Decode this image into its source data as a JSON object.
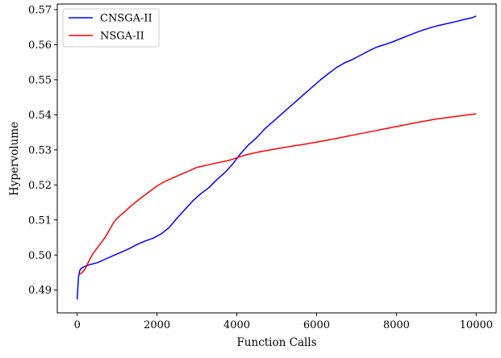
{
  "chart_data": {
    "type": "line",
    "title": "",
    "xlabel": "Function Calls",
    "ylabel": "Hypervolume",
    "xlim": [
      -500,
      10500
    ],
    "ylim": [
      0.4835,
      0.5716
    ],
    "xticks": [
      0,
      2000,
      4000,
      6000,
      8000,
      10000
    ],
    "yticks": [
      0.49,
      0.5,
      0.51,
      0.52,
      0.53,
      0.54,
      0.55,
      0.56,
      0.57
    ],
    "xtick_labels": [
      "0",
      "2000",
      "4000",
      "6000",
      "8000",
      "10000"
    ],
    "ytick_labels": [
      "0.49",
      "0.50",
      "0.51",
      "0.52",
      "0.53",
      "0.54",
      "0.55",
      "0.56",
      "0.57"
    ],
    "grid": false,
    "legend_position": "upper-left",
    "series": [
      {
        "name": "CNSGA-II",
        "color": "#0000ff",
        "x": [
          0,
          30,
          60,
          100,
          200,
          300,
          500,
          700,
          900,
          1100,
          1300,
          1500,
          1700,
          1900,
          2100,
          2300,
          2500,
          2700,
          2900,
          3100,
          3300,
          3500,
          3700,
          3900,
          4100,
          4300,
          4500,
          4700,
          4900,
          5100,
          5300,
          5500,
          5700,
          5900,
          6100,
          6300,
          6500,
          6700,
          6900,
          7100,
          7300,
          7500,
          7700,
          7900,
          8100,
          8300,
          8500,
          8700,
          8900,
          9100,
          9300,
          9500,
          9700,
          9900,
          10000
        ],
        "y": [
          0.4873,
          0.4935,
          0.4955,
          0.4962,
          0.4968,
          0.4972,
          0.4978,
          0.4988,
          0.4998,
          0.5008,
          0.5018,
          0.503,
          0.504,
          0.5048,
          0.506,
          0.5078,
          0.5105,
          0.513,
          0.5155,
          0.5175,
          0.5192,
          0.5215,
          0.5235,
          0.526,
          0.529,
          0.5315,
          0.5335,
          0.536,
          0.538,
          0.54,
          0.542,
          0.544,
          0.546,
          0.548,
          0.55,
          0.5518,
          0.5535,
          0.5548,
          0.5558,
          0.557,
          0.5582,
          0.5593,
          0.56,
          0.5608,
          0.5617,
          0.5626,
          0.5635,
          0.5643,
          0.565,
          0.5656,
          0.5661,
          0.5666,
          0.5672,
          0.5677,
          0.5682
        ]
      },
      {
        "name": "NSGA-II",
        "color": "#ff0000",
        "x": [
          50,
          100,
          200,
          300,
          400,
          500,
          600,
          700,
          800,
          900,
          1000,
          1200,
          1400,
          1600,
          1800,
          2000,
          2200,
          2400,
          2600,
          2800,
          3000,
          3400,
          3800,
          4200,
          4600,
          5000,
          5400,
          5800,
          6200,
          6600,
          7000,
          7400,
          7800,
          8200,
          8600,
          9000,
          9400,
          9800,
          10000
        ],
        "y": [
          0.4945,
          0.4948,
          0.496,
          0.4985,
          0.5005,
          0.502,
          0.5035,
          0.505,
          0.507,
          0.509,
          0.5105,
          0.5125,
          0.5145,
          0.5163,
          0.518,
          0.5197,
          0.521,
          0.522,
          0.523,
          0.524,
          0.525,
          0.526,
          0.527,
          0.5285,
          0.5295,
          0.5303,
          0.5311,
          0.5318,
          0.5326,
          0.5335,
          0.5344,
          0.5353,
          0.5362,
          0.5371,
          0.538,
          0.5388,
          0.5394,
          0.54,
          0.5403
        ]
      }
    ]
  }
}
